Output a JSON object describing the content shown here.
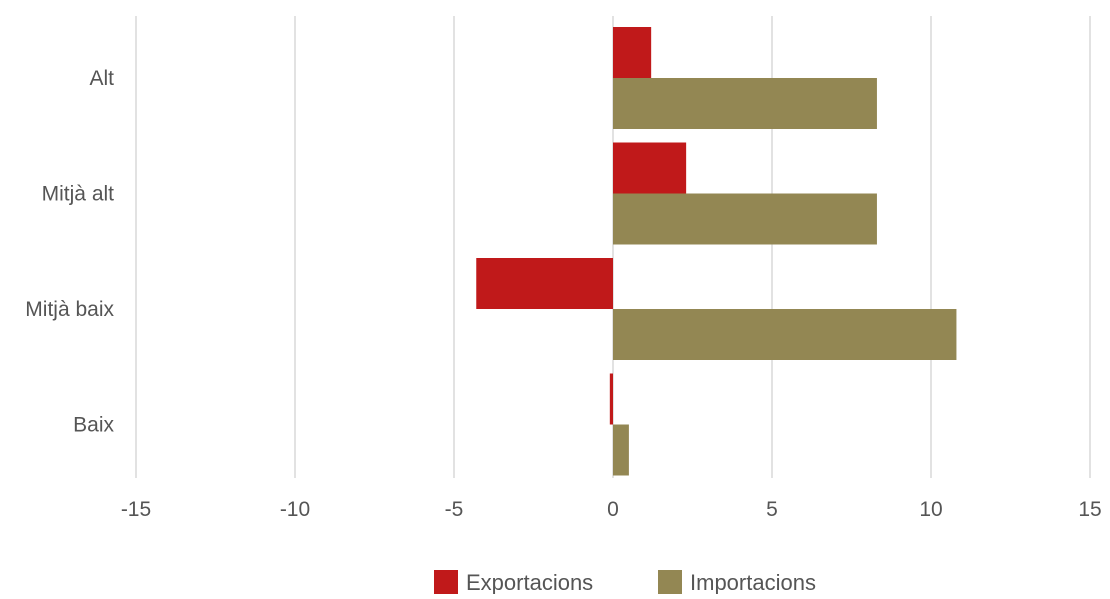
{
  "chart_data": {
    "type": "bar",
    "orientation": "horizontal",
    "categories": [
      "Alt",
      "Mitjà alt",
      "Mitjà baix",
      "Baix"
    ],
    "series": [
      {
        "name": "Exportacions",
        "color": "#c0191a",
        "values": [
          1.2,
          2.3,
          -4.3,
          -0.1
        ]
      },
      {
        "name": "Importacions",
        "color": "#938753",
        "values": [
          8.3,
          8.3,
          10.8,
          0.5
        ]
      }
    ],
    "xlim": [
      -15,
      15
    ],
    "xticks": [
      -15,
      -10,
      -5,
      0,
      5,
      10,
      15
    ],
    "xtick_labels": [
      "-15",
      "-10",
      "-5",
      "0",
      "5",
      "10",
      "15"
    ],
    "grid": true,
    "legend_position": "bottom",
    "title": "",
    "xlabel": "",
    "ylabel": ""
  }
}
